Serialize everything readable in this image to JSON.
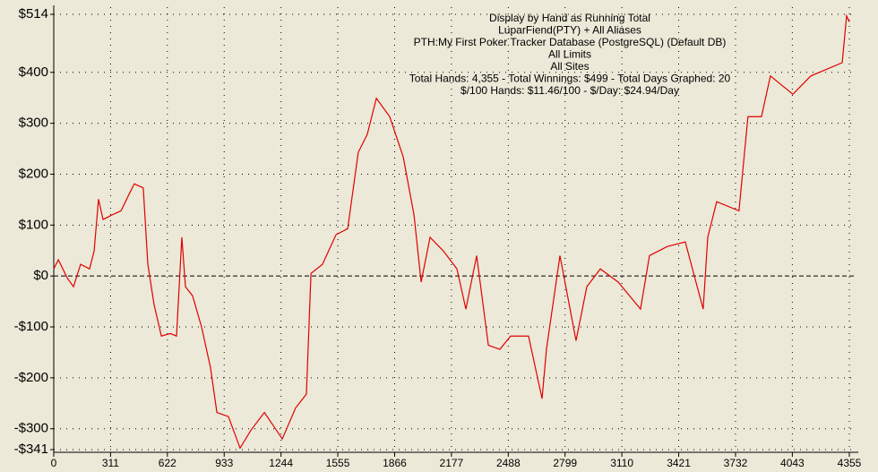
{
  "chart_data": {
    "type": "line",
    "annotations": [
      "Display by Hand as Running Total",
      "LuparFiend(PTY) + All Aliases",
      "PTH:My First Poker Tracker Database (PostgreSQL) (Default DB)",
      "All Limits",
      "All Sites",
      "Total Hands: 4,355 - Total Winnings: $499 - Total Days Graphed: 20",
      "$/100 Hands: $11.46/100 - $/Day: $24.94/Day"
    ],
    "x": [
      0,
      25,
      74,
      108,
      147,
      196,
      221,
      245,
      270,
      319,
      368,
      417,
      441,
      490,
      515,
      549,
      589,
      638,
      672,
      701,
      721,
      760,
      809,
      858,
      893,
      956,
      1020,
      1079,
      1153,
      1251,
      1324,
      1383,
      1408,
      1471,
      1545,
      1609,
      1667,
      1716,
      1766,
      1839,
      1913,
      1972,
      2011,
      2060,
      2133,
      2207,
      2256,
      2315,
      2379,
      2442,
      2501,
      2599,
      2673,
      2697,
      2771,
      2859,
      2918,
      2992,
      3090,
      3212,
      3261,
      3359,
      3457,
      3555,
      3580,
      3629,
      3751,
      3800,
      3874,
      3923,
      4046,
      4144,
      4316,
      4340,
      4355
    ],
    "series": [
      {
        "name": "Running Total",
        "color": "#e00000",
        "values": [
          14,
          32,
          -4,
          -21,
          23,
          14,
          49,
          151,
          111,
          120,
          128,
          164,
          181,
          173,
          23,
          -56,
          -118,
          -113,
          -118,
          76,
          -21,
          -39,
          -100,
          -180,
          -268,
          -276,
          -338,
          -303,
          -268,
          -320,
          -259,
          -232,
          5,
          23,
          81,
          93,
          243,
          278,
          349,
          313,
          234,
          120,
          -12,
          76,
          49,
          14,
          -65,
          40,
          -136,
          -144,
          -118,
          -118,
          -241,
          -144,
          40,
          -127,
          -21,
          14,
          -12,
          -65,
          40,
          58,
          67,
          -65,
          76,
          146,
          128,
          313,
          313,
          393,
          357,
          393,
          419,
          511,
          499
        ]
      }
    ],
    "xlim": [
      0,
      4355
    ],
    "xticks": [
      0,
      311,
      622,
      933,
      1244,
      1555,
      1866,
      2177,
      2488,
      2799,
      3110,
      3421,
      3732,
      4043,
      4355
    ],
    "ylim": [
      -341,
      514
    ],
    "yticks": [
      {
        "value": 514,
        "label": "$514"
      },
      {
        "value": 400,
        "label": "$400"
      },
      {
        "value": 300,
        "label": "$300"
      },
      {
        "value": 200,
        "label": "$200"
      },
      {
        "value": 100,
        "label": "$100"
      },
      {
        "value": 0,
        "label": "$0"
      },
      {
        "value": -100,
        "label": "-$100"
      },
      {
        "value": -200,
        "label": "-$200"
      },
      {
        "value": -300,
        "label": "-$300"
      },
      {
        "value": -341,
        "label": "-$341"
      }
    ],
    "grid": true
  }
}
